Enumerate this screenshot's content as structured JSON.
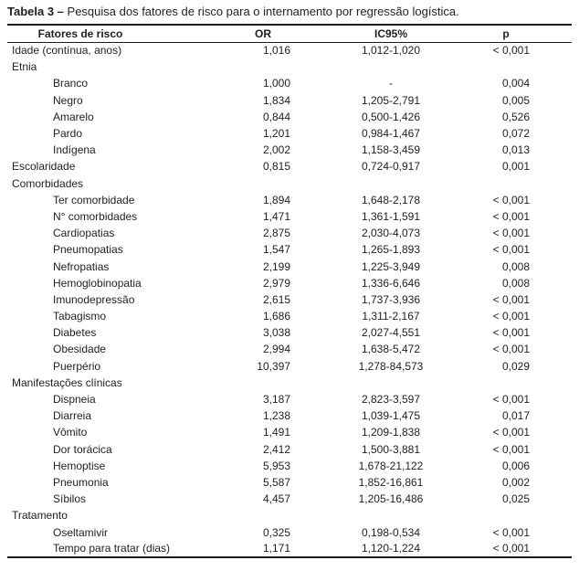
{
  "caption": {
    "label": "Tabela 3 –",
    "text": "Pesquisa dos fatores de risco para o internamento por regressão logística."
  },
  "colors": {
    "text": "#1f1f1f",
    "rule": "#1c1c1c",
    "background": "#ffffff"
  },
  "table": {
    "columns": [
      "Fatores de risco",
      "OR",
      "IC95%",
      "p"
    ],
    "rows": [
      {
        "label": "Idade (contínua, anos)",
        "indent": 0,
        "or": "1,016",
        "ic95": "1,012-1,020",
        "p": "< 0,001"
      },
      {
        "label": "Etnia",
        "indent": 0,
        "or": "",
        "ic95": "",
        "p": ""
      },
      {
        "label": "Branco",
        "indent": 1,
        "or": "1,000",
        "ic95": "-",
        "p": "0,004"
      },
      {
        "label": "Negro",
        "indent": 1,
        "or": "1,834",
        "ic95": "1,205-2,791",
        "p": "0,005"
      },
      {
        "label": "Amarelo",
        "indent": 1,
        "or": "0,844",
        "ic95": "0,500-1,426",
        "p": "0,526"
      },
      {
        "label": "Pardo",
        "indent": 1,
        "or": "1,201",
        "ic95": "0,984-1,467",
        "p": "0,072"
      },
      {
        "label": "Indígena",
        "indent": 1,
        "or": "2,002",
        "ic95": "1,158-3,459",
        "p": "0,013"
      },
      {
        "label": "Escolaridade",
        "indent": 0,
        "or": "0,815",
        "ic95": "0,724-0,917",
        "p": "0,001"
      },
      {
        "label": "Comorbidades",
        "indent": 0,
        "or": "",
        "ic95": "",
        "p": ""
      },
      {
        "label": "Ter comorbidade",
        "indent": 1,
        "or": "1,894",
        "ic95": "1,648-2,178",
        "p": "< 0,001"
      },
      {
        "label": "N° comorbidades",
        "indent": 1,
        "or": "1,471",
        "ic95": "1,361-1,591",
        "p": "< 0,001"
      },
      {
        "label": "Cardiopatias",
        "indent": 1,
        "or": "2,875",
        "ic95": "2,030-4,073",
        "p": "< 0,001"
      },
      {
        "label": "Pneumopatias",
        "indent": 1,
        "or": "1,547",
        "ic95": "1,265-1,893",
        "p": "< 0,001"
      },
      {
        "label": "Nefropatias",
        "indent": 1,
        "or": "2,199",
        "ic95": "1,225-3,949",
        "p": "0,008"
      },
      {
        "label": "Hemoglobinopatia",
        "indent": 1,
        "or": "2,979",
        "ic95": "1,336-6,646",
        "p": "0,008"
      },
      {
        "label": "Imunodepressão",
        "indent": 1,
        "or": "2,615",
        "ic95": "1,737-3,936",
        "p": "< 0,001"
      },
      {
        "label": "Tabagismo",
        "indent": 1,
        "or": "1,686",
        "ic95": "1,311-2,167",
        "p": "< 0,001"
      },
      {
        "label": "Diabetes",
        "indent": 1,
        "or": "3,038",
        "ic95": "2,027-4,551",
        "p": "< 0,001"
      },
      {
        "label": "Obesidade",
        "indent": 1,
        "or": "2,994",
        "ic95": "1,638-5,472",
        "p": "< 0,001"
      },
      {
        "label": "Puerpério",
        "indent": 1,
        "or": "10,397",
        "ic95": "1,278-84,573",
        "p": "0,029"
      },
      {
        "label": "Manifestações clínicas",
        "indent": 0,
        "or": "",
        "ic95": "",
        "p": ""
      },
      {
        "label": "Dispneia",
        "indent": 1,
        "or": "3,187",
        "ic95": "2,823-3,597",
        "p": "< 0,001"
      },
      {
        "label": "Diarreia",
        "indent": 1,
        "or": "1,238",
        "ic95": "1,039-1,475",
        "p": "0,017"
      },
      {
        "label": "Vômito",
        "indent": 1,
        "or": "1,491",
        "ic95": "1,209-1,838",
        "p": "< 0,001"
      },
      {
        "label": "Dor torácica",
        "indent": 1,
        "or": "2,412",
        "ic95": "1,500-3,881",
        "p": "< 0,001"
      },
      {
        "label": "Hemoptise",
        "indent": 1,
        "or": "5,953",
        "ic95": "1,678-21,122",
        "p": "0,006"
      },
      {
        "label": "Pneumonia",
        "indent": 1,
        "or": "5,587",
        "ic95": "1,852-16,861",
        "p": "0,002"
      },
      {
        "label": "Síbilos",
        "indent": 1,
        "or": "4,457",
        "ic95": "1,205-16,486",
        "p": "0,025"
      },
      {
        "label": "Tratamento",
        "indent": 0,
        "or": "",
        "ic95": "",
        "p": ""
      },
      {
        "label": "Oseltamivir",
        "indent": 1,
        "or": "0,325",
        "ic95": "0,198-0,534",
        "p": "< 0,001"
      },
      {
        "label": "Tempo para tratar (dias)",
        "indent": 1,
        "or": "1,171",
        "ic95": "1,120-1,224",
        "p": "< 0,001"
      }
    ]
  }
}
